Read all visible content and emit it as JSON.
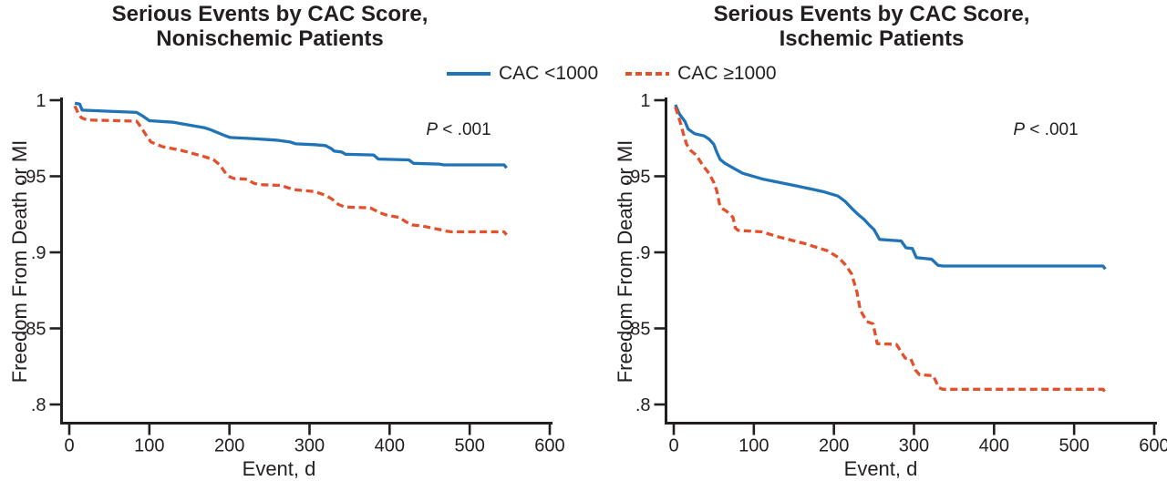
{
  "figure": {
    "legend": {
      "items": [
        {
          "label": "CAC <1000",
          "color": "#1f73b7",
          "line_style": "solid"
        },
        {
          "label": "CAC ≥1000",
          "color": "#e2502c",
          "line_style": "dashed"
        }
      ]
    }
  },
  "chart_data": [
    {
      "type": "line",
      "title": "Serious Events by CAC Score, Nonischemic Patients",
      "title_lines": [
        "Serious Events by CAC Score,",
        "Nonischemic Patients"
      ],
      "xlabel": "Event, d",
      "ylabel": "Freedom From Death or MI",
      "annotation": {
        "p": "P",
        "rest": " < .001"
      },
      "xlim": [
        0,
        600
      ],
      "ylim": [
        0.8,
        1.0
      ],
      "xticks": [
        0,
        100,
        200,
        300,
        400,
        500,
        600
      ],
      "yticks": [
        1,
        0.95,
        0.9,
        0.85,
        0.8
      ],
      "ytick_labels": [
        "1",
        ".95",
        ".9",
        ".85",
        ".8"
      ],
      "grid": false,
      "legend_position": "top-center-shared",
      "series": [
        {
          "name": "CAC <1000",
          "color": "#1f73b7",
          "dash": "solid",
          "points": [
            [
              7,
              0.998
            ],
            [
              13,
              0.9975
            ],
            [
              16,
              0.9935
            ],
            [
              60,
              0.9925
            ],
            [
              84,
              0.992
            ],
            [
              92,
              0.9895
            ],
            [
              100,
              0.9865
            ],
            [
              130,
              0.9855
            ],
            [
              168,
              0.982
            ],
            [
              177,
              0.9805
            ],
            [
              193,
              0.977
            ],
            [
              201,
              0.9755
            ],
            [
              228,
              0.9748
            ],
            [
              258,
              0.9738
            ],
            [
              276,
              0.9725
            ],
            [
              283,
              0.9713
            ],
            [
              306,
              0.9708
            ],
            [
              320,
              0.9702
            ],
            [
              327,
              0.9682
            ],
            [
              331,
              0.9665
            ],
            [
              340,
              0.966
            ],
            [
              345,
              0.9645
            ],
            [
              380,
              0.964
            ],
            [
              386,
              0.9613
            ],
            [
              424,
              0.9608
            ],
            [
              430,
              0.9585
            ],
            [
              462,
              0.958
            ],
            [
              468,
              0.9575
            ],
            [
              543,
              0.9575
            ],
            [
              546,
              0.9555
            ]
          ]
        },
        {
          "name": "CAC ≥1000",
          "color": "#e2502c",
          "dash": "dashed",
          "points": [
            [
              7,
              0.9962
            ],
            [
              11,
              0.9915
            ],
            [
              15,
              0.9885
            ],
            [
              22,
              0.987
            ],
            [
              84,
              0.9862
            ],
            [
              90,
              0.982
            ],
            [
              96,
              0.977
            ],
            [
              102,
              0.9725
            ],
            [
              116,
              0.9695
            ],
            [
              140,
              0.967
            ],
            [
              168,
              0.963
            ],
            [
              180,
              0.961
            ],
            [
              188,
              0.9575
            ],
            [
              196,
              0.9515
            ],
            [
              201,
              0.9495
            ],
            [
              206,
              0.9485
            ],
            [
              222,
              0.948
            ],
            [
              230,
              0.9455
            ],
            [
              237,
              0.9445
            ],
            [
              264,
              0.944
            ],
            [
              277,
              0.9418
            ],
            [
              284,
              0.941
            ],
            [
              306,
              0.94
            ],
            [
              320,
              0.9375
            ],
            [
              328,
              0.935
            ],
            [
              336,
              0.9315
            ],
            [
              344,
              0.9298
            ],
            [
              376,
              0.9292
            ],
            [
              388,
              0.926
            ],
            [
              396,
              0.9245
            ],
            [
              412,
              0.923
            ],
            [
              420,
              0.9202
            ],
            [
              428,
              0.918
            ],
            [
              442,
              0.9172
            ],
            [
              462,
              0.915
            ],
            [
              470,
              0.914
            ],
            [
              478,
              0.9135
            ],
            [
              543,
              0.9135
            ],
            [
              546,
              0.9115
            ]
          ]
        }
      ]
    },
    {
      "type": "line",
      "title": "Serious Events by CAC Score, Ischemic Patients",
      "title_lines": [
        "Serious Events by CAC Score,",
        "Ischemic Patients"
      ],
      "xlabel": "Event, d",
      "ylabel": "Freedom From Death or MI",
      "annotation": {
        "p": "P",
        "rest": " < .001"
      },
      "xlim": [
        0,
        600
      ],
      "ylim": [
        0.8,
        1.0
      ],
      "xticks": [
        0,
        100,
        200,
        300,
        400,
        500,
        600
      ],
      "yticks": [
        1,
        0.95,
        0.9,
        0.85,
        0.8
      ],
      "ytick_labels": [
        "1",
        ".95",
        ".9",
        ".85",
        ".8"
      ],
      "grid": false,
      "legend_position": "top-center-shared",
      "series": [
        {
          "name": "CAC <1000",
          "color": "#1f73b7",
          "dash": "solid",
          "points": [
            [
              2,
              0.997
            ],
            [
              7,
              0.991
            ],
            [
              14,
              0.986
            ],
            [
              18,
              0.981
            ],
            [
              26,
              0.978
            ],
            [
              38,
              0.9765
            ],
            [
              44,
              0.9745
            ],
            [
              50,
              0.971
            ],
            [
              54,
              0.9655
            ],
            [
              58,
              0.961
            ],
            [
              64,
              0.9585
            ],
            [
              74,
              0.9555
            ],
            [
              86,
              0.952
            ],
            [
              112,
              0.948
            ],
            [
              150,
              0.944
            ],
            [
              186,
              0.94
            ],
            [
              205,
              0.937
            ],
            [
              214,
              0.9335
            ],
            [
              224,
              0.928
            ],
            [
              230,
              0.925
            ],
            [
              238,
              0.9215
            ],
            [
              244,
              0.918
            ],
            [
              250,
              0.915
            ],
            [
              257,
              0.9085
            ],
            [
              284,
              0.9075
            ],
            [
              290,
              0.903
            ],
            [
              298,
              0.9025
            ],
            [
              303,
              0.8965
            ],
            [
              322,
              0.8955
            ],
            [
              330,
              0.8915
            ],
            [
              336,
              0.891
            ],
            [
              536,
              0.891
            ],
            [
              539,
              0.889
            ]
          ]
        },
        {
          "name": "CAC ≥1000",
          "color": "#e2502c",
          "dash": "dashed",
          "points": [
            [
              2,
              0.9955
            ],
            [
              9,
              0.984
            ],
            [
              12,
              0.978
            ],
            [
              16,
              0.971
            ],
            [
              21,
              0.967
            ],
            [
              28,
              0.964
            ],
            [
              34,
              0.959
            ],
            [
              38,
              0.956
            ],
            [
              44,
              0.952
            ],
            [
              50,
              0.946
            ],
            [
              54,
              0.94
            ],
            [
              57,
              0.932
            ],
            [
              60,
              0.929
            ],
            [
              66,
              0.927
            ],
            [
              74,
              0.923
            ],
            [
              77,
              0.916
            ],
            [
              80,
              0.9145
            ],
            [
              110,
              0.9135
            ],
            [
              132,
              0.91
            ],
            [
              162,
              0.906
            ],
            [
              192,
              0.901
            ],
            [
              206,
              0.8965
            ],
            [
              214,
              0.892
            ],
            [
              222,
              0.886
            ],
            [
              229,
              0.8735
            ],
            [
              233,
              0.862
            ],
            [
              241,
              0.8545
            ],
            [
              249,
              0.853
            ],
            [
              254,
              0.84
            ],
            [
              278,
              0.8395
            ],
            [
              289,
              0.8305
            ],
            [
              296,
              0.83
            ],
            [
              302,
              0.8225
            ],
            [
              307,
              0.8195
            ],
            [
              324,
              0.819
            ],
            [
              331,
              0.811
            ],
            [
              336,
              0.81
            ],
            [
              536,
              0.81
            ],
            [
              539,
              0.808
            ]
          ]
        }
      ]
    }
  ]
}
